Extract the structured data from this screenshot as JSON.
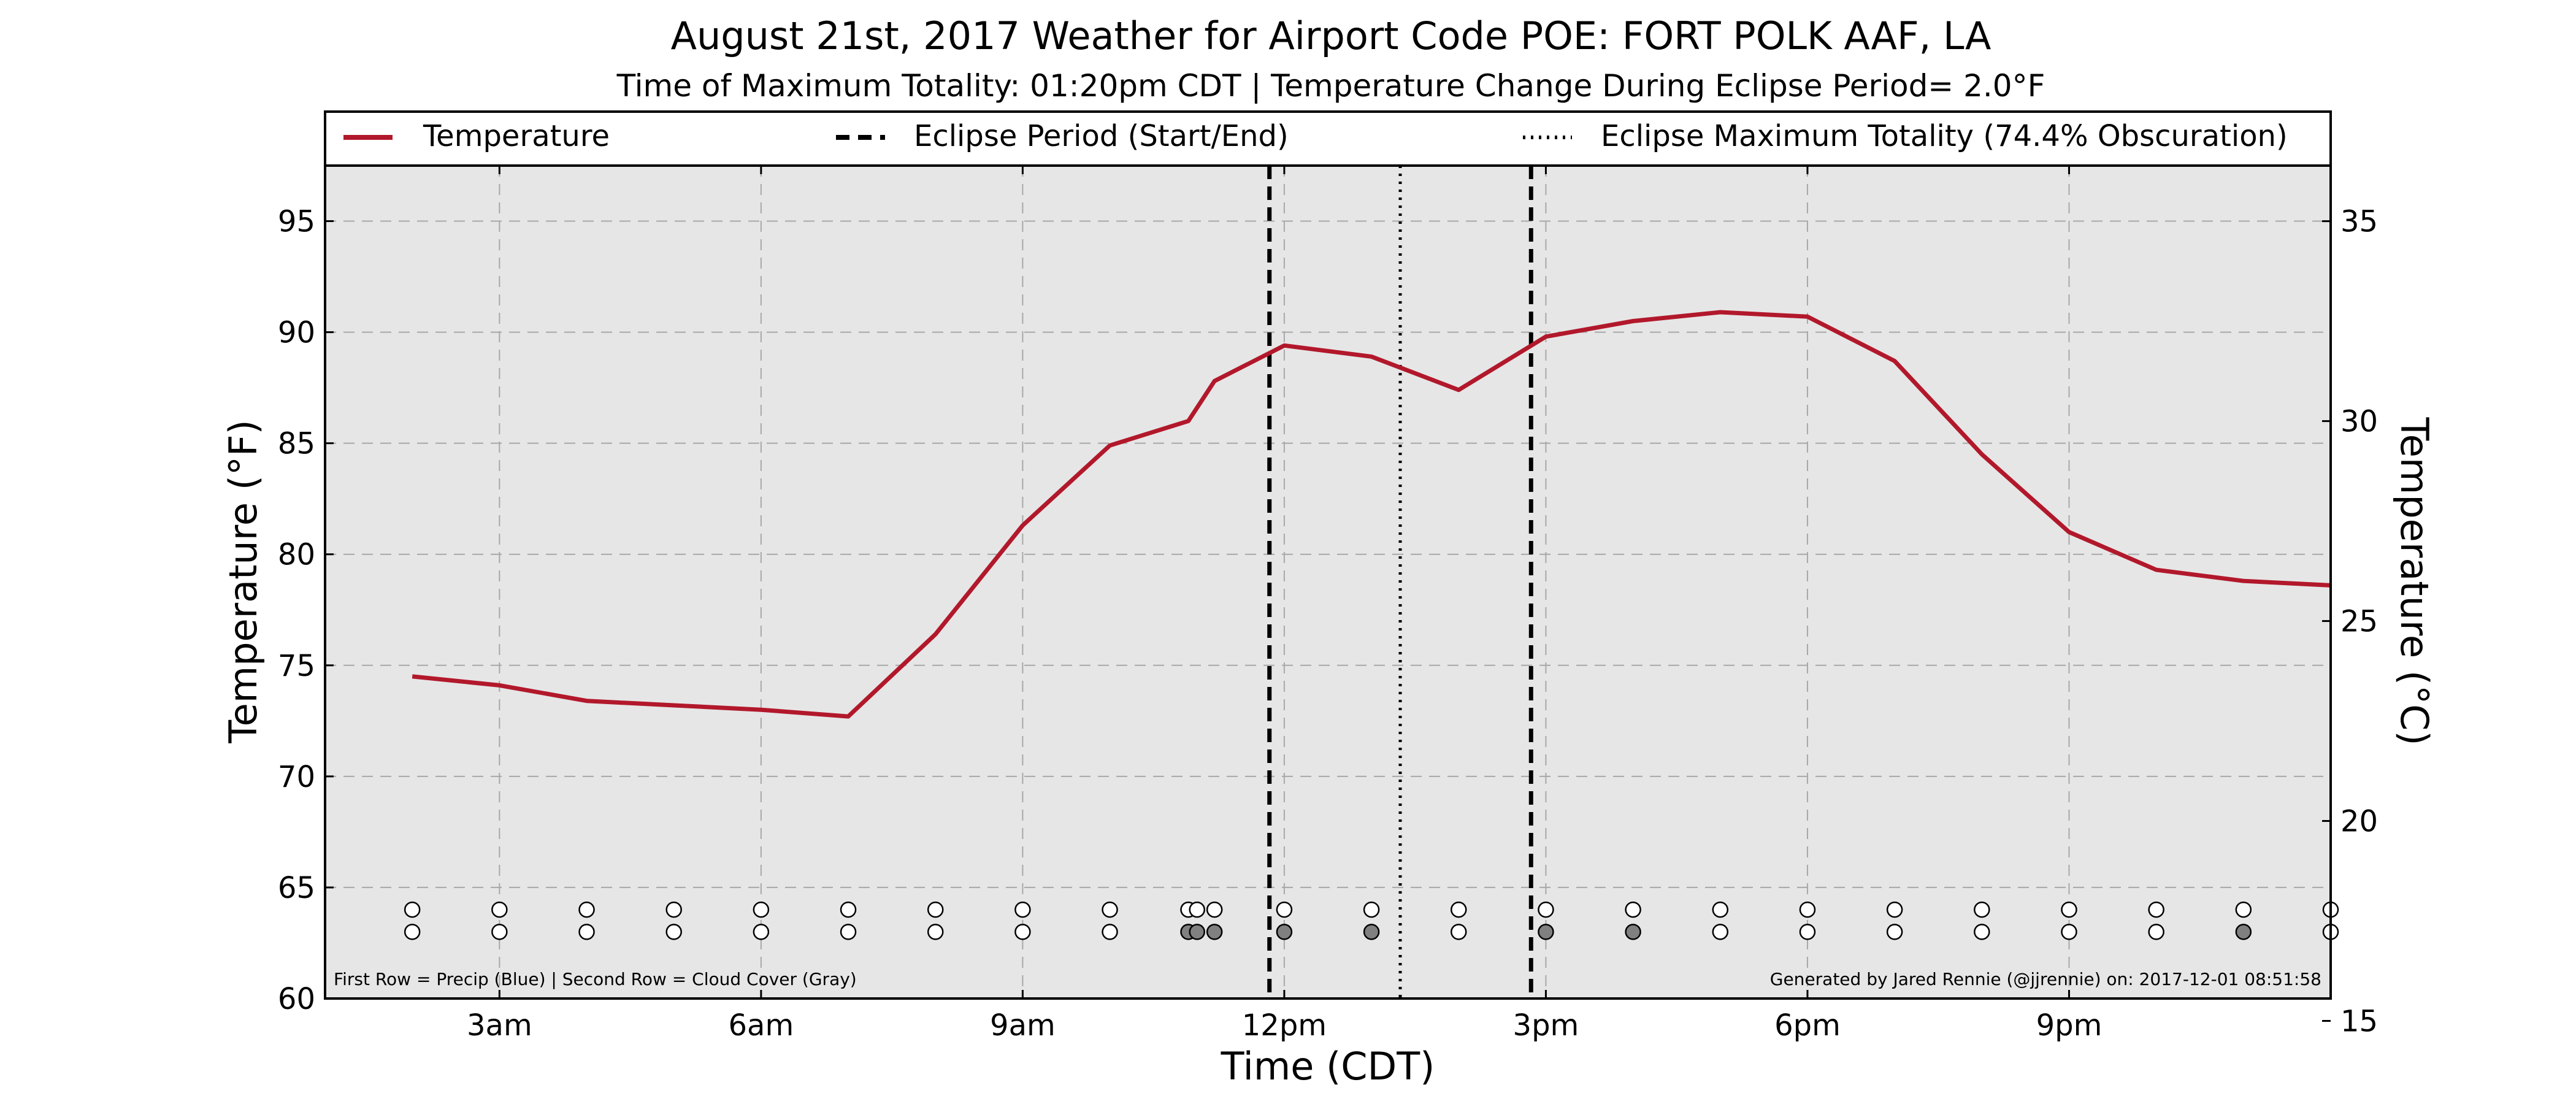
{
  "chart_data": {
    "type": "line",
    "title": "August 21st, 2017 Weather for Airport Code POE: FORT POLK AAF, LA",
    "subtitle": "Time of Maximum Totality: 01:20pm CDT | Temperature Change During Eclipse Period= 2.0°F",
    "xlabel": "Time (CDT)",
    "ylabel": "Temperature (°F)",
    "ylabel_right": "Temperature (°C)",
    "xlim": [
      1.0,
      24.0
    ],
    "ylim": [
      60,
      97.5
    ],
    "ylim_right_celsius": [
      15.56,
      36.39
    ],
    "grid": true,
    "legend_position": "top",
    "x_ticks": [
      {
        "x": 3,
        "label": "3am"
      },
      {
        "x": 6,
        "label": "6am"
      },
      {
        "x": 9,
        "label": "9am"
      },
      {
        "x": 12,
        "label": "12pm"
      },
      {
        "x": 15,
        "label": "3pm"
      },
      {
        "x": 18,
        "label": "6pm"
      },
      {
        "x": 21,
        "label": "9pm"
      }
    ],
    "y_ticks": [
      60,
      65,
      70,
      75,
      80,
      85,
      90,
      95
    ],
    "y_ticks_right": [
      15,
      20,
      25,
      30,
      35
    ],
    "series": [
      {
        "name": "Temperature",
        "color": "#b2182b",
        "x": [
          2.0,
          3.0,
          4.0,
          5.0,
          6.0,
          7.0,
          8.0,
          9.0,
          10.0,
          10.9,
          11.2,
          12.0,
          13.0,
          14.0,
          15.0,
          16.0,
          17.0,
          18.0,
          19.0,
          20.0,
          21.0,
          22.0,
          23.0,
          24.0
        ],
        "y": [
          74.5,
          74.1,
          73.4,
          73.2,
          73.0,
          72.7,
          76.4,
          81.3,
          84.9,
          86.0,
          87.8,
          89.4,
          88.9,
          87.4,
          89.8,
          90.5,
          90.9,
          90.7,
          88.7,
          84.5,
          81.0,
          79.3,
          78.8,
          78.6
        ]
      }
    ],
    "eclipse": {
      "start_label": "Eclipse Period (Start/End)",
      "max_label": "Eclipse Maximum Totality (74.4% Obscuration)",
      "start_x": 11.83,
      "max_x": 13.33,
      "end_x": 14.83
    },
    "obs_markers": {
      "precip_y": 64.0,
      "cloud_y": 63.0,
      "x": [
        2.0,
        3.0,
        4.0,
        5.0,
        6.0,
        7.0,
        8.0,
        9.0,
        10.0,
        10.9,
        11.0,
        11.2,
        12.0,
        13.0,
        14.0,
        15.0,
        16.0,
        17.0,
        18.0,
        19.0,
        20.0,
        21.0,
        22.0,
        23.0,
        24.0
      ],
      "cloud_filled": [
        false,
        false,
        false,
        false,
        false,
        false,
        false,
        false,
        false,
        true,
        true,
        true,
        true,
        true,
        false,
        true,
        true,
        false,
        false,
        false,
        false,
        false,
        false,
        true,
        false
      ],
      "filled_color": "#808080"
    },
    "footnote_left": "First Row = Precip (Blue) | Second Row = Cloud Cover (Gray)",
    "footnote_right": "Generated by Jared Rennie (@jjrennie) on: 2017-12-01 08:51:58"
  }
}
